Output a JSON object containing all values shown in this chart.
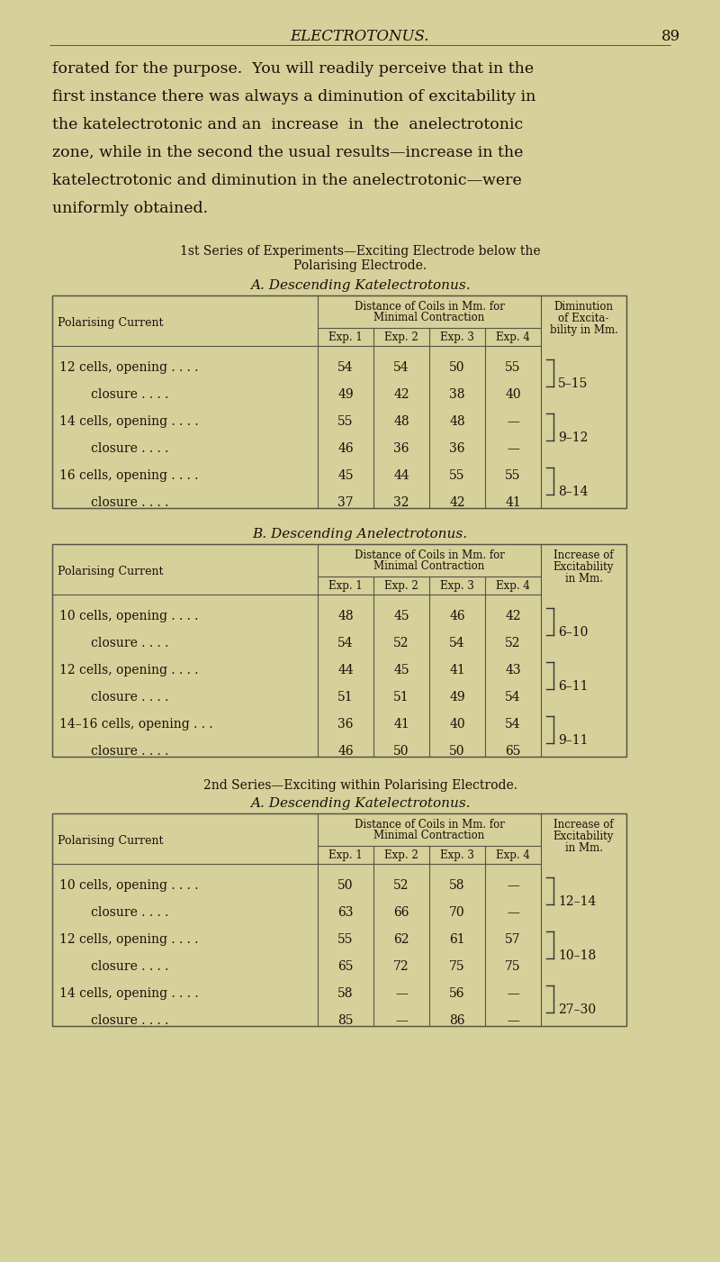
{
  "bg_color": "#d6d09a",
  "text_color": "#1a1008",
  "title": "ELECTROTONUS.",
  "page_num": "89",
  "body_text": [
    "forated for the purpose.  You will readily perceive that in the",
    "first instance there was always a diminution of excitability in",
    "the katelectrotonic and an  increase  in  the  anelectrotonic",
    "zone, while in the second the usual results—increase in the",
    "katelectrotonic and diminution in the anelectrotonic—were",
    "uniformly obtained."
  ],
  "section1_line1": "1st Series of Experiments—Exciting Electrode below the",
  "section1_line2": "Polarising Electrode.",
  "tableA1_title": "A. Descending Katelectrotonus.",
  "tableB1_title": "B. Descending Anelectrotonus.",
  "section2_title": "2nd Series—Exciting within Polarising Electrode.",
  "tableA2_title": "A. Descending Katelectrotonus.",
  "col_header2_A1": [
    "Diminution",
    "of Excita-",
    "bility in Mm."
  ],
  "col_header2_B1": [
    "Increase of",
    "Excitability",
    "in Mm."
  ],
  "col_header2_A2": [
    "Increase of",
    "Excitability",
    "in Mm."
  ],
  "sub_cols": [
    "Exp. 1",
    "Exp. 2",
    "Exp. 3",
    "Exp. 4"
  ],
  "tableA1_rows": [
    [
      "12 cells, opening . . . .",
      "54",
      "54",
      "50",
      "55",
      "5–15"
    ],
    [
      "        closure . . . .",
      "49",
      "42",
      "38",
      "40",
      ""
    ],
    [
      "14 cells, opening . . . .",
      "55",
      "48",
      "48",
      "—",
      "9–12"
    ],
    [
      "        closure . . . .",
      "46",
      "36",
      "36",
      "—",
      ""
    ],
    [
      "16 cells, opening . . . .",
      "45",
      "44",
      "55",
      "55",
      "8–14"
    ],
    [
      "        closure . . . .",
      "37",
      "32",
      "42",
      "41",
      ""
    ]
  ],
  "tableB1_rows": [
    [
      "10 cells, opening . . . .",
      "48",
      "45",
      "46",
      "42",
      "6–10"
    ],
    [
      "        closure . . . .",
      "54",
      "52",
      "54",
      "52",
      ""
    ],
    [
      "12 cells, opening . . . .",
      "44",
      "45",
      "41",
      "43",
      "6–11"
    ],
    [
      "        closure . . . .",
      "51",
      "51",
      "49",
      "54",
      ""
    ],
    [
      "14–16 cells, opening . . .",
      "36",
      "41",
      "40",
      "54",
      "9–11"
    ],
    [
      "        closure . . . .",
      "46",
      "50",
      "50",
      "65",
      ""
    ]
  ],
  "tableA2_rows": [
    [
      "10 cells, opening . . . .",
      "50",
      "52",
      "58",
      "—",
      "12–14"
    ],
    [
      "        closure . . . .",
      "63",
      "66",
      "70",
      "—",
      ""
    ],
    [
      "12 cells, opening . . . .",
      "55",
      "62",
      "61",
      "57",
      "10–18"
    ],
    [
      "        closure . . . .",
      "65",
      "72",
      "75",
      "75",
      ""
    ],
    [
      "14 cells, opening . . . .",
      "58",
      "—",
      "56",
      "—",
      "27–30"
    ],
    [
      "        closure . . . .",
      "85",
      "—",
      "86",
      "—",
      ""
    ]
  ]
}
